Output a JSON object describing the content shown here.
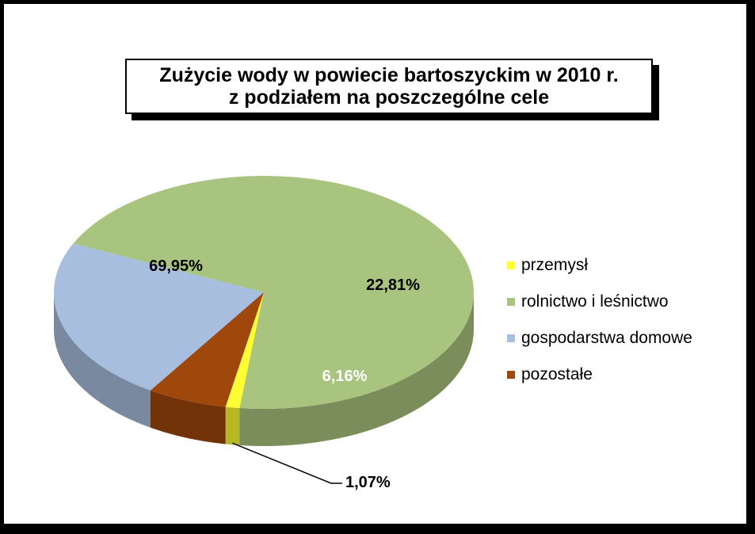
{
  "chart_data": {
    "type": "pie",
    "title_line1": "Zużycie wody w powiecie bartoszyckim w 2010 r.",
    "title_line2": "z podziałem na poszczególne cele",
    "slices": [
      {
        "label": "przemysł",
        "value": 1.07,
        "display": "1,07%",
        "color": "#FFFF33"
      },
      {
        "label": "rolnictwo i leśnictwo",
        "value": 69.95,
        "display": "69,95%",
        "color": "#A9C47E"
      },
      {
        "label": "gospodarstwa domowe",
        "value": 22.81,
        "display": "22,81%",
        "color": "#A7BEDE"
      },
      {
        "label": "pozostałe",
        "value": 6.16,
        "display": "6,16%",
        "color": "#A0470B"
      }
    ],
    "legend_position": "right",
    "style": "3d-pie"
  }
}
